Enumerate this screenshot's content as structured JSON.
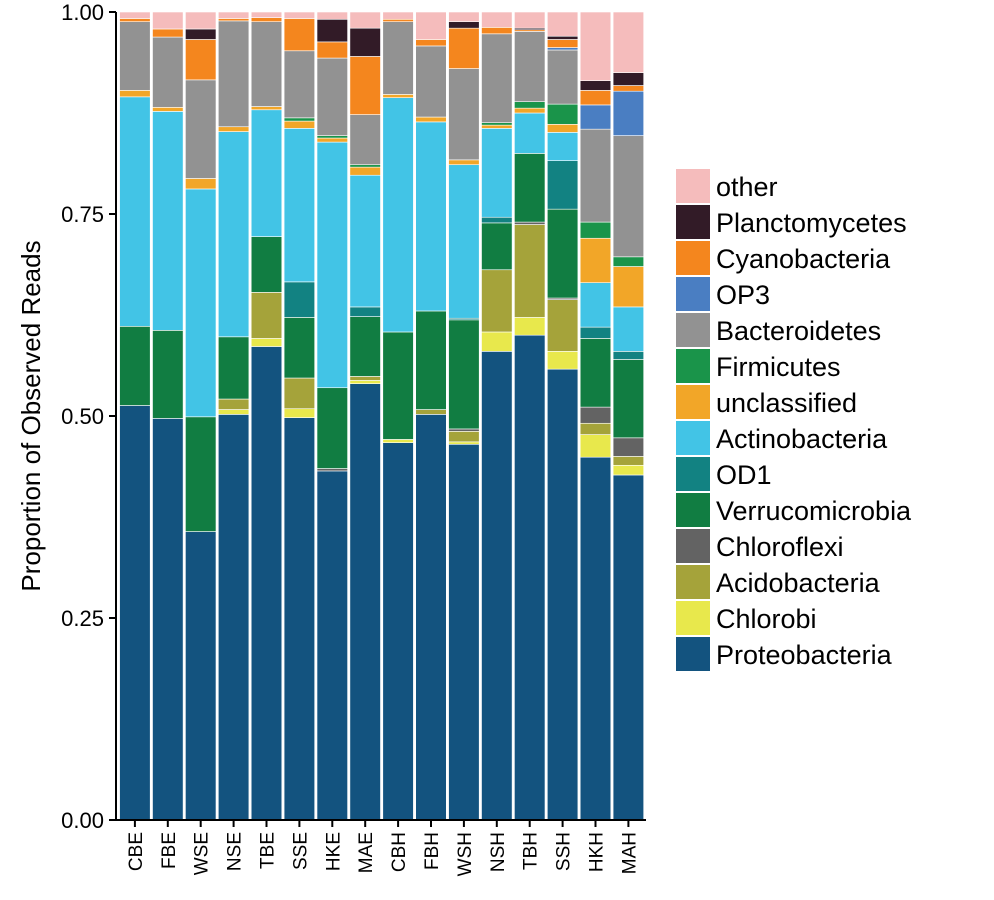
{
  "chart_data": {
    "type": "bar",
    "stacked": true,
    "title": "",
    "xlabel": "",
    "ylabel": "Proportion of Observed Reads",
    "ylim": [
      0,
      1
    ],
    "yticks": [
      "0.00",
      "0.25",
      "0.50",
      "0.75",
      "1.00"
    ],
    "ytick_values": [
      0,
      0.25,
      0.5,
      0.75,
      1.0
    ],
    "grid": false,
    "legend_position": "right",
    "categories": [
      "CBE",
      "FBE",
      "WSE",
      "NSE",
      "TBE",
      "SSE",
      "HKE",
      "MAE",
      "CBH",
      "FBH",
      "WSH",
      "NSH",
      "TBH",
      "SSH",
      "HKH",
      "MAH"
    ],
    "series": [
      {
        "name": "Proteobacteria",
        "color": "#13537F",
        "values": [
          0.513,
          0.497,
          0.357,
          0.502,
          0.586,
          0.498,
          0.432,
          0.54,
          0.467,
          0.502,
          0.465,
          0.58,
          0.6,
          0.558,
          0.449,
          0.427
        ]
      },
      {
        "name": "Chlorobi",
        "color": "#E8E84C",
        "values": [
          0.0,
          0.0,
          0.0,
          0.006,
          0.01,
          0.011,
          0.0,
          0.004,
          0.004,
          0.0,
          0.003,
          0.024,
          0.022,
          0.022,
          0.028,
          0.012
        ]
      },
      {
        "name": "Acidobacteria",
        "color": "#A5A33A",
        "values": [
          0.0,
          0.0,
          0.0,
          0.013,
          0.057,
          0.038,
          0.0,
          0.005,
          0.0,
          0.006,
          0.013,
          0.077,
          0.115,
          0.064,
          0.014,
          0.011
        ]
      },
      {
        "name": "Chloroflexi",
        "color": "#636363",
        "values": [
          0.0,
          0.0,
          0.0,
          0.0,
          0.0,
          0.0,
          0.003,
          0.0,
          0.0,
          0.0,
          0.003,
          0.0,
          0.003,
          0.002,
          0.02,
          0.023
        ]
      },
      {
        "name": "Verrucomicrobia",
        "color": "#117D42",
        "values": [
          0.098,
          0.109,
          0.142,
          0.077,
          0.069,
          0.075,
          0.1,
          0.074,
          0.133,
          0.122,
          0.135,
          0.058,
          0.085,
          0.11,
          0.085,
          0.097
        ]
      },
      {
        "name": "OD1",
        "color": "#128282",
        "values": [
          0.0,
          0.0,
          0.0,
          0.0,
          0.0,
          0.044,
          0.0,
          0.012,
          0.0,
          0.0,
          0.002,
          0.007,
          0.0,
          0.06,
          0.014,
          0.01
        ]
      },
      {
        "name": "Actinobacteria",
        "color": "#42C4E6",
        "values": [
          0.284,
          0.271,
          0.282,
          0.254,
          0.157,
          0.19,
          0.304,
          0.163,
          0.29,
          0.234,
          0.19,
          0.11,
          0.05,
          0.035,
          0.055,
          0.055
        ]
      },
      {
        "name": "unclassified",
        "color": "#F2A628",
        "values": [
          0.008,
          0.005,
          0.013,
          0.006,
          0.004,
          0.009,
          0.005,
          0.01,
          0.004,
          0.006,
          0.006,
          0.004,
          0.006,
          0.01,
          0.055,
          0.05
        ]
      },
      {
        "name": "Firmicutes",
        "color": "#1A944A",
        "values": [
          0.0,
          0.0,
          0.0,
          0.0,
          0.0,
          0.004,
          0.003,
          0.003,
          0.0,
          0.0,
          0.0,
          0.003,
          0.008,
          0.025,
          0.02,
          0.012
        ]
      },
      {
        "name": "Bacteroidetes",
        "color": "#929292",
        "values": [
          0.085,
          0.087,
          0.122,
          0.131,
          0.105,
          0.083,
          0.096,
          0.062,
          0.09,
          0.088,
          0.113,
          0.11,
          0.087,
          0.067,
          0.115,
          0.15
        ]
      },
      {
        "name": "OP3",
        "color": "#4A7EC2",
        "values": [
          0.0,
          0.0,
          0.0,
          0.0,
          0.0,
          0.0,
          0.0,
          0.0,
          0.0,
          0.0,
          0.0,
          0.0,
          0.0,
          0.003,
          0.03,
          0.055
        ]
      },
      {
        "name": "Cyanobacteria",
        "color": "#F4861E",
        "values": [
          0.004,
          0.01,
          0.05,
          0.003,
          0.005,
          0.04,
          0.02,
          0.072,
          0.003,
          0.008,
          0.05,
          0.008,
          0.002,
          0.01,
          0.018,
          0.007
        ]
      },
      {
        "name": "Planctomycetes",
        "color": "#321B27",
        "values": [
          0.0,
          0.0,
          0.013,
          0.0,
          0.0,
          0.0,
          0.028,
          0.035,
          0.0,
          0.0,
          0.008,
          0.0,
          0.002,
          0.004,
          0.012,
          0.016
        ]
      },
      {
        "name": "other",
        "color": "#F5BCBC",
        "values": [
          0.008,
          0.021,
          0.021,
          0.008,
          0.007,
          0.008,
          0.009,
          0.02,
          0.009,
          0.034,
          0.012,
          0.019,
          0.02,
          0.03,
          0.085,
          0.075
        ]
      }
    ]
  }
}
